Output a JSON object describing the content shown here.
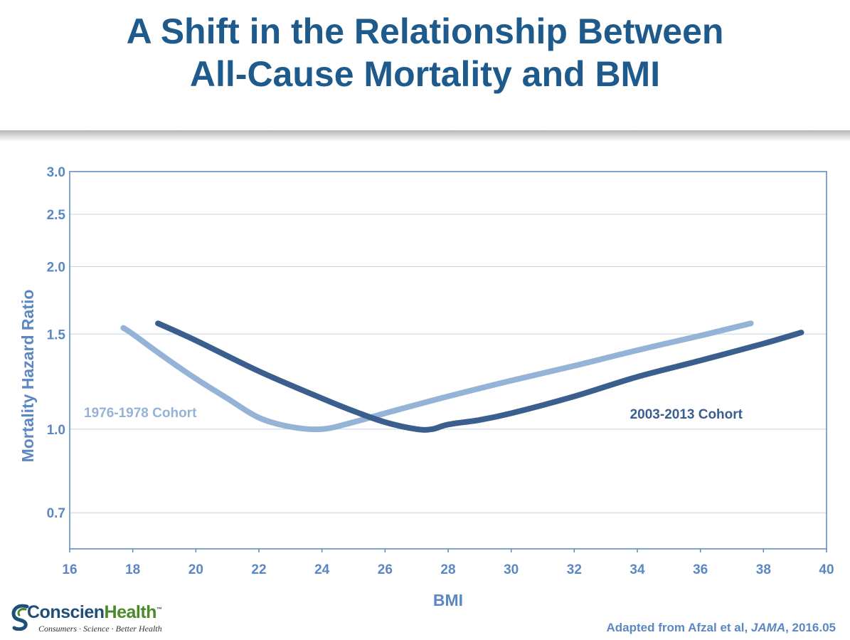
{
  "header": {
    "title_line1": "A Shift in the Relationship Between",
    "title_line2": "All-Cause Mortality and BMI"
  },
  "chart_data": {
    "type": "line",
    "xlabel": "BMI",
    "ylabel": "Mortality Hazard Ratio",
    "xlim": [
      16,
      40
    ],
    "ylim": [
      0.6,
      3.0
    ],
    "yscale": "log",
    "xticks": [
      16,
      18,
      20,
      22,
      24,
      26,
      28,
      30,
      32,
      34,
      36,
      38,
      40
    ],
    "yticks": [
      0.7,
      1.0,
      1.5,
      2.0,
      2.5,
      3.0
    ],
    "ytick_labels": [
      "0.7",
      "1.0",
      "1.5",
      "2.0",
      "2.5",
      "3.0"
    ],
    "grid": "horizontal",
    "series": [
      {
        "name": "1976-1978 Cohort",
        "color": "#95b3d7",
        "x": [
          17.7,
          18.0,
          19.0,
          20.0,
          21.0,
          22.0,
          23.0,
          24.0,
          25.0,
          26.0,
          28.0,
          30.0,
          32.0,
          34.0,
          36.0,
          37.6
        ],
        "y": [
          1.54,
          1.5,
          1.36,
          1.24,
          1.14,
          1.05,
          1.01,
          1.0,
          1.03,
          1.07,
          1.15,
          1.23,
          1.31,
          1.4,
          1.49,
          1.57
        ]
      },
      {
        "name": "2003-2013 Cohort",
        "color": "#3a5f8f",
        "x": [
          18.8,
          20.0,
          22.0,
          24.0,
          25.0,
          26.0,
          27.0,
          27.5,
          28.0,
          29.0,
          30.0,
          32.0,
          34.0,
          36.0,
          38.0,
          39.2
        ],
        "y": [
          1.57,
          1.46,
          1.28,
          1.14,
          1.08,
          1.03,
          1.0,
          1.0,
          1.02,
          1.04,
          1.07,
          1.15,
          1.25,
          1.34,
          1.44,
          1.51
        ]
      }
    ]
  },
  "source": {
    "prefix": "Adapted from Afzal et al, ",
    "journal": "JAMA",
    "suffix": ", 2016.05"
  },
  "logo": {
    "brand_part1": "Conscien",
    "brand_part2": "Health",
    "tm": "™",
    "tagline": "Consumers · Science · Better Health"
  }
}
